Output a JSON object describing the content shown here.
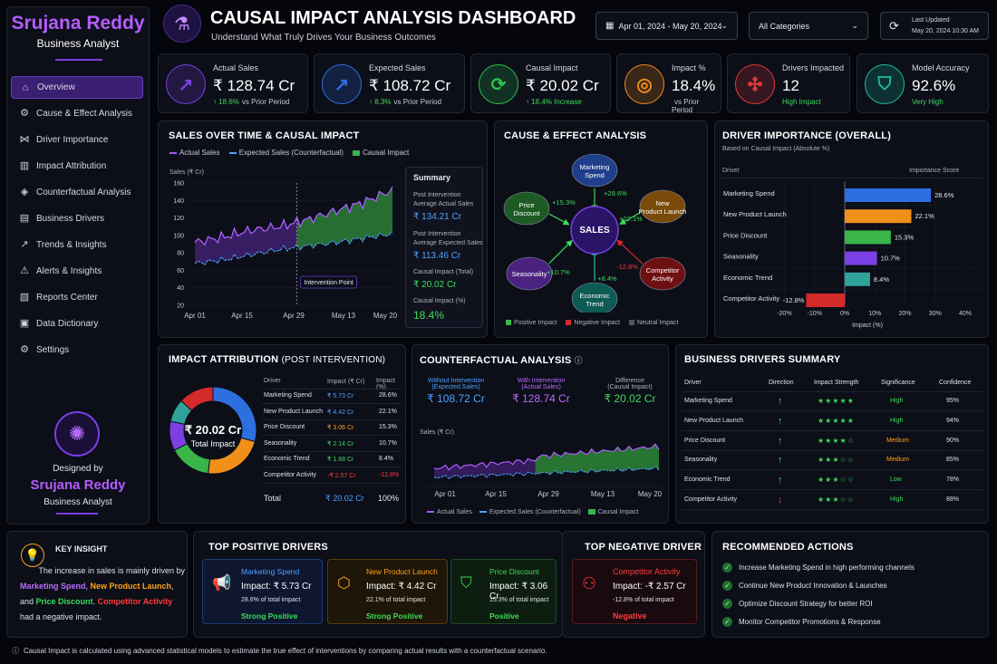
{
  "brand": {
    "name": "Srujana Reddy",
    "role": "Business Analyst"
  },
  "header": {
    "title": "CAUSAL IMPACT ANALYSIS DASHBOARD",
    "subtitle": "Understand What Truly Drives Your Business Outcomes",
    "date_range": "Apr 01, 2024 - May 20, 2024",
    "category": "All Categories",
    "last_updated_label": "Last Updated",
    "last_updated": "May 20, 2024 10:30 AM"
  },
  "sidebar": {
    "items": [
      {
        "label": "Overview",
        "icon": "home-icon"
      },
      {
        "label": "Cause & Effect Analysis",
        "icon": "network-icon"
      },
      {
        "label": "Driver Importance",
        "icon": "nodes-icon"
      },
      {
        "label": "Impact Attribution",
        "icon": "bar-chart-icon"
      },
      {
        "label": "Counterfactual Analysis",
        "icon": "compare-icon"
      },
      {
        "label": "Business Drivers",
        "icon": "chart-icon"
      },
      {
        "label": "Trends & Insights",
        "icon": "trend-icon"
      },
      {
        "label": "Alerts & Insights",
        "icon": "bell-icon"
      },
      {
        "label": "Reports Center",
        "icon": "report-icon"
      },
      {
        "label": "Data Dictionary",
        "icon": "book-icon"
      },
      {
        "label": "Settings",
        "icon": "gear-icon"
      }
    ],
    "designed_by": "Designed by",
    "designer": "Srujana Reddy",
    "designer_role": "Business Analyst"
  },
  "kpis": [
    {
      "label": "Actual Sales",
      "value": "₹ 128.74 Cr",
      "delta": "18.6%",
      "delta_text": "vs Prior Period",
      "color": "#7b3fe4"
    },
    {
      "label": "Expected Sales",
      "value": "₹ 108.72 Cr",
      "delta": "8.3%",
      "delta_text": "vs Prior Period",
      "color": "#2f6fe0"
    },
    {
      "label": "Causal Impact",
      "value": "₹ 20.02 Cr",
      "delta": "18.4% Increase",
      "delta_text": "",
      "color": "#2fbf4f"
    },
    {
      "label": "Impact %",
      "value": "18.4%",
      "delta": "",
      "delta_text": "vs Prior Period",
      "color": "#f08a1a"
    },
    {
      "label": "Drivers Impacted",
      "value": "12",
      "delta": "High Impact",
      "delta_text": "",
      "color": "#e03a3a"
    },
    {
      "label": "Model Accuracy",
      "value": "92.6%",
      "delta": "Very High",
      "delta_text": "",
      "color": "#1fbfa0"
    }
  ],
  "sales_chart": {
    "title": "SALES OVER TIME & CAUSAL IMPACT",
    "legend": [
      "Actual Sales",
      "Expected Sales (Counterfactual)",
      "Causal Impact"
    ],
    "ylabel": "Sales (₹ Cr)",
    "yticks": [
      "160",
      "140",
      "120",
      "100",
      "80",
      "60",
      "40",
      "20"
    ],
    "xticks": [
      "Apr 01",
      "Apr 15",
      "Apr 29",
      "May 13",
      "May 20"
    ],
    "intervention_label": "Intervention Point",
    "summary": {
      "title": "Summary",
      "l1": "Post Intervention Average Actual Sales",
      "v1": "₹ 134.21 Cr",
      "l2": "Post Intervention Average Expected Sales",
      "v2": "₹ 113.46 Cr",
      "l3": "Causal Impact (Total)",
      "v3": "₹ 20.02 Cr",
      "l4": "Causal Impact (%)",
      "v4": "18.4%"
    }
  },
  "chart_data": {
    "type": "line",
    "title": "SALES OVER TIME & CAUSAL IMPACT",
    "ylabel": "Sales (₹ Cr)",
    "ylim": [
      20,
      160
    ],
    "x": [
      "Apr 01",
      "Apr 08",
      "Apr 15",
      "Apr 22",
      "Apr 29",
      "May 06",
      "May 13",
      "May 20"
    ],
    "series": [
      {
        "name": "Actual Sales",
        "values": [
          92,
          98,
          106,
          110,
          118,
          128,
          138,
          152
        ]
      },
      {
        "name": "Expected Sales (Counterfactual)",
        "values": [
          68,
          72,
          78,
          84,
          88,
          92,
          97,
          102
        ]
      }
    ]
  },
  "cause_effect": {
    "title": "CAUSE & EFFECT ANALYSIS",
    "center": "SALES",
    "nodes": [
      {
        "label": "Marketing Spend",
        "pct": "+28.6%",
        "color": "#1f3f8a"
      },
      {
        "label": "New Product Launch",
        "pct": "+22.1%",
        "color": "#7a4a0a"
      },
      {
        "label": "Competitor Activity",
        "pct": "-12.8%",
        "color": "#6e0f12"
      },
      {
        "label": "Economic Trend",
        "pct": "+8.4%",
        "color": "#0e5a54"
      },
      {
        "label": "Seasonality",
        "pct": "+10.7%",
        "color": "#4a2280"
      },
      {
        "label": "Price Discount",
        "pct": "+15.3%",
        "color": "#1e5a23"
      }
    ],
    "legend": [
      "Positive Impact",
      "Negative Impact",
      "Neutral Impact"
    ]
  },
  "driver_importance": {
    "title": "DRIVER IMPORTANCE (OVERALL)",
    "subtitle": "Based on Causal Impact (Absolute %)",
    "col1": "Driver",
    "col2": "Importance Score",
    "xlabel": "Impact (%)",
    "xticks": [
      "-20%",
      "-10%",
      "0%",
      "10%",
      "20%",
      "30%",
      "40%"
    ],
    "bars": [
      {
        "label": "Marketing Spend",
        "value": 28.6,
        "text": "28.6%",
        "color": "#2e6fe0"
      },
      {
        "label": "New Product Launch",
        "value": 22.1,
        "text": "22.1%",
        "color": "#f0901a"
      },
      {
        "label": "Price Discount",
        "value": 15.3,
        "text": "15.3%",
        "color": "#39b54a"
      },
      {
        "label": "Seasonality",
        "value": 10.7,
        "text": "10.7%",
        "color": "#7b3fe4"
      },
      {
        "label": "Economic Trend",
        "value": 8.4,
        "text": "8.4%",
        "color": "#2fa39a"
      },
      {
        "label": "Competitor Activity",
        "value": -12.8,
        "text": "-12.8%",
        "color": "#d42a2a"
      }
    ]
  },
  "attribution": {
    "title": "IMPACT ATTRIBUTION",
    "title_suffix": "(POST INTERVENTION)",
    "center_value": "₹ 20.02 Cr",
    "center_label": "Total Impact",
    "cols": [
      "Driver",
      "Impact (₹ Cr)",
      "Impact (%)"
    ],
    "rows": [
      {
        "driver": "Marketing Spend",
        "impact": "₹ 5.73 Cr",
        "pct": "28.6%",
        "color": "#4ea3ff"
      },
      {
        "driver": "New Product Launch",
        "impact": "₹ 4.42 Cr",
        "pct": "22.1%",
        "color": "#4ea3ff"
      },
      {
        "driver": "Price Discount",
        "impact": "₹ 3.06 Cr",
        "pct": "15.3%",
        "color": "#ffa21a"
      },
      {
        "driver": "Seasonality",
        "impact": "₹ 2.14 Cr",
        "pct": "10.7%",
        "color": "#3ddc5a"
      },
      {
        "driver": "Economic Trend",
        "impact": "₹ 1.68 Cr",
        "pct": "8.4%",
        "color": "#3ddc5a"
      },
      {
        "driver": "Competitor Activity",
        "impact": "-₹ 2.57 Cr",
        "pct": "-12.8%",
        "color": "#ff3b3b"
      }
    ],
    "total_label": "Total",
    "total_impact": "₹ 20.02 Cr",
    "total_pct": "100%",
    "donut": [
      28.6,
      22.1,
      15.3,
      10.7,
      8.4,
      12.8
    ],
    "donut_colors": [
      "#2e6fe0",
      "#f0901a",
      "#39b54a",
      "#7b3fe4",
      "#2fa39a",
      "#d42a2a"
    ]
  },
  "counterfactual": {
    "title": "COUNTERFACTUAL ANALYSIS",
    "c1_label": "Without Intervention",
    "c1_sub": "(Expected Sales)",
    "c1_value": "₹ 108.72 Cr",
    "c2_label": "With Intervention",
    "c2_sub": "(Actual Sales)",
    "c2_value": "₹ 128.74 Cr",
    "c3_label": "Difference",
    "c3_sub": "(Causal Impact)",
    "c3_value": "₹ 20.02 Cr",
    "ylabel": "Sales (₹ Cr)",
    "xticks": [
      "Apr 01",
      "Apr 15",
      "Apr 29",
      "May 13",
      "May 20"
    ],
    "legend": [
      "Actual Sales",
      "Expected Sales (Counterfactual)",
      "Causal Impact"
    ]
  },
  "drivers_summary": {
    "title": "BUSINESS DRIVERS SUMMARY",
    "cols": [
      "Driver",
      "Direction",
      "Impact Strength",
      "Significance",
      "Confidence"
    ],
    "rows": [
      {
        "driver": "Marketing Spend",
        "dir": "↑",
        "stars": "★★★★★",
        "sig": "High",
        "conf": "95%"
      },
      {
        "driver": "New Product Launch",
        "dir": "↑",
        "stars": "★★★★★",
        "sig": "High",
        "conf": "94%"
      },
      {
        "driver": "Price Discount",
        "dir": "↑",
        "stars": "★★★★☆",
        "sig": "Medium",
        "conf": "90%"
      },
      {
        "driver": "Seasonality",
        "dir": "↑",
        "stars": "★★★☆☆",
        "sig": "Medium",
        "conf": "85%"
      },
      {
        "driver": "Economic Trend",
        "dir": "↑",
        "stars": "★★★☆☆",
        "sig": "Low",
        "conf": "78%"
      },
      {
        "driver": "Competitor Activity",
        "dir": "↓",
        "stars": "★★★☆☆",
        "sig": "High",
        "conf": "88%"
      }
    ]
  },
  "key_insight": {
    "title": "KEY INSIGHT",
    "t1": "The increase in sales is mainly driven by",
    "t2": "Marketing Spend",
    "t3": ", ",
    "t4": "New Product Launch",
    "t5": ",",
    "t6": "and ",
    "t7": "Price Discount",
    "t8": ". ",
    "t9": "Competitor Activity",
    "t10": "had a negative impact."
  },
  "positive_drivers": {
    "title": "TOP POSITIVE DRIVERS",
    "items": [
      {
        "name": "Marketing Spend",
        "impact": "Impact: ₹ 5.73 Cr",
        "share": "28.6% of total impact",
        "tag": "Strong Positive"
      },
      {
        "name": "New Product Launch",
        "impact": "Impact: ₹ 4.42 Cr",
        "share": "22.1% of total impact",
        "tag": "Strong Positive"
      },
      {
        "name": "Price Discount",
        "impact": "Impact: ₹ 3.06 Cr",
        "share": "15.3% of total impact",
        "tag": "Positive"
      }
    ]
  },
  "negative_driver": {
    "title": "TOP NEGATIVE DRIVER",
    "name": "Competitor Activity",
    "impact": "Impact: -₹ 2.57 Cr",
    "share": "-12.8% of total impact",
    "tag": "Negative"
  },
  "actions": {
    "title": "RECOMMENDED ACTIONS",
    "items": [
      "Increase Marketing Spend in high performing channels",
      "Continue New Product Innovation & Launches",
      "Optimize Discount Strategy for better ROI",
      "Monitor Competitor Promotions & Response"
    ]
  },
  "footer": "Causal Impact is calculated using advanced statistical models to estimate the true effect of interventions by comparing actual results with a counterfactual scenario."
}
